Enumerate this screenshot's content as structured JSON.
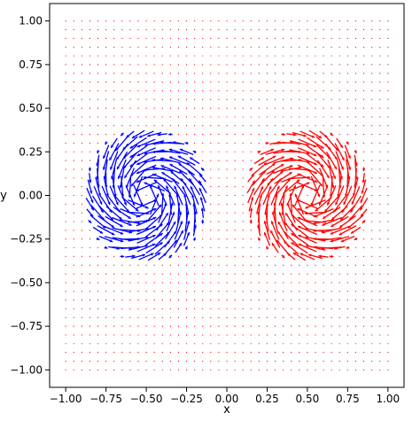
{
  "chart_data": {
    "type": "quiver",
    "title": "",
    "xlabel": "x",
    "ylabel": "y",
    "xlim": [
      -1.1,
      1.1
    ],
    "ylim": [
      -1.1,
      1.1
    ],
    "x_ticks": [
      -1.0,
      -0.75,
      -0.5,
      -0.25,
      0.0,
      0.25,
      0.5,
      0.75,
      1.0
    ],
    "x_tick_labels": [
      "−1.00",
      "−0.75",
      "−0.50",
      "−0.25",
      "0.00",
      "0.25",
      "0.50",
      "0.75",
      "1.00"
    ],
    "y_ticks": [
      1.0,
      0.75,
      0.5,
      0.25,
      0.0,
      -0.25,
      -0.5,
      -0.75,
      -1.0
    ],
    "y_tick_labels": [
      "1.00",
      "0.75",
      "0.50",
      "0.25",
      "0.00",
      "−0.25",
      "−0.50",
      "−0.75",
      "−1.00"
    ],
    "grid": false,
    "legend": "none",
    "field_grid": {
      "x_range": [
        -1.0,
        1.0
      ],
      "y_range": [
        -1.0,
        1.0
      ],
      "spacing": 0.05
    },
    "vortices": [
      {
        "name": "",
        "center": [
          -0.5,
          0.0
        ],
        "radius": 0.33,
        "rotation": "counter-clockwise",
        "color": "#0000ff"
      },
      {
        "name": "",
        "center": [
          0.5,
          0.0
        ],
        "radius": 0.33,
        "rotation": "clockwise",
        "color": "#ff0000"
      }
    ],
    "background_color": "#ff0000"
  }
}
